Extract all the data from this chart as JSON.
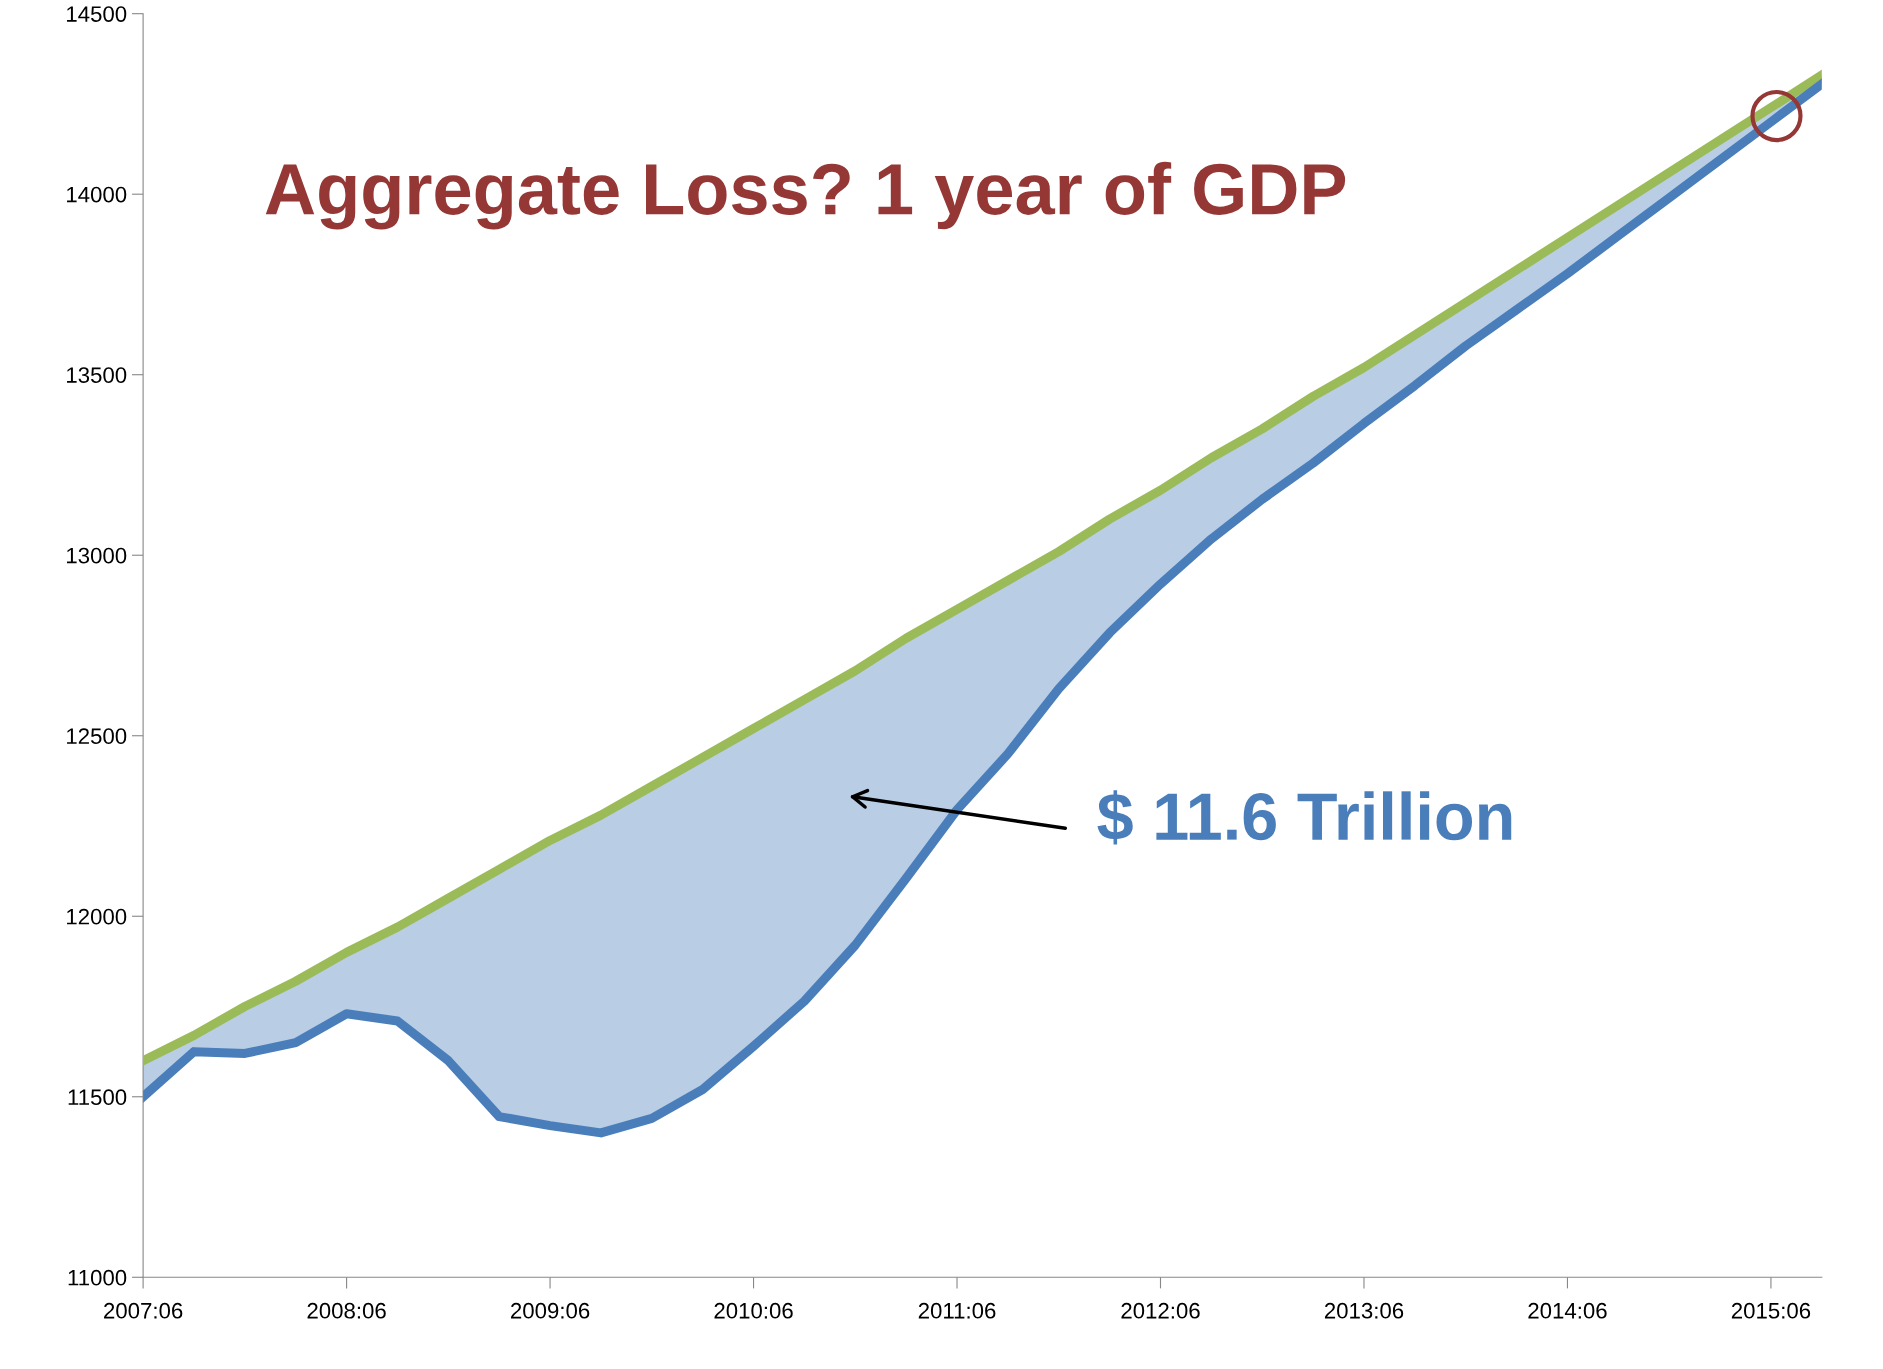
{
  "chart_data": {
    "type": "line",
    "title": "Aggregate Loss? 1 year of GDP",
    "categories": [
      "2007:06",
      null,
      null,
      null,
      "2008:06",
      null,
      null,
      null,
      "2009:06",
      null,
      null,
      null,
      "2010:06",
      null,
      null,
      null,
      "2011:06",
      null,
      null,
      null,
      "2012:06",
      null,
      null,
      null,
      "2013:06",
      null,
      null,
      null,
      "2014:06",
      null,
      null,
      null,
      "2015:06",
      null
    ],
    "series": [
      {
        "color": "#9bbb59",
        "values": [
          11600,
          11670,
          11750,
          11820,
          11900,
          11970,
          12050,
          12130,
          12210,
          12280,
          12360,
          12440,
          12520,
          12600,
          12680,
          12770,
          12850,
          12930,
          13010,
          13100,
          13180,
          13270,
          13350,
          13440,
          13520,
          13610,
          13700,
          13790,
          13880,
          13970,
          14060,
          14150,
          14240,
          14330
        ]
      },
      {
        "color": "#4a7ebb",
        "values": [
          11500,
          11625,
          11620,
          11650,
          11730,
          11710,
          11600,
          11445,
          11420,
          11400,
          11440,
          11520,
          11640,
          11765,
          11920,
          12105,
          12295,
          12450,
          12630,
          12785,
          12920,
          13045,
          13155,
          13255,
          13365,
          13470,
          13580,
          13680,
          13780,
          13885,
          13990,
          14095,
          14200,
          14305
        ],
        "lower": [
          11500,
          11625,
          11620,
          11650,
          11730,
          11710,
          11600,
          11445,
          11420,
          11400,
          11440,
          11520,
          11640,
          11765,
          11920,
          12105,
          12295,
          12450,
          12630,
          12785,
          12920,
          13045,
          13155,
          13255,
          13365,
          13470,
          13580,
          13680,
          13780,
          13885,
          13990,
          14095,
          14200,
          14305
        ],
        "upper": [
          11600,
          11670,
          11750,
          11820,
          11900,
          11970,
          12050,
          12130,
          12210,
          12280,
          12360,
          12440,
          12520,
          12600,
          12680,
          12770,
          12850,
          12930,
          13010,
          13100,
          13180,
          13270,
          13350,
          13440,
          13520,
          13610,
          13700,
          13790,
          13880,
          13970,
          14060,
          14150,
          14240,
          14330
        ]
      }
    ],
    "annotations": [
      "$ 11.6 Trillion"
    ],
    "ylim": [
      11000,
      14500
    ],
    "yticks": [
      11000,
      11500,
      12000,
      12500,
      13000,
      13500,
      14000,
      14500
    ],
    "grid": false,
    "legend": false,
    "marker": "none",
    "line_style": "solid"
  }
}
